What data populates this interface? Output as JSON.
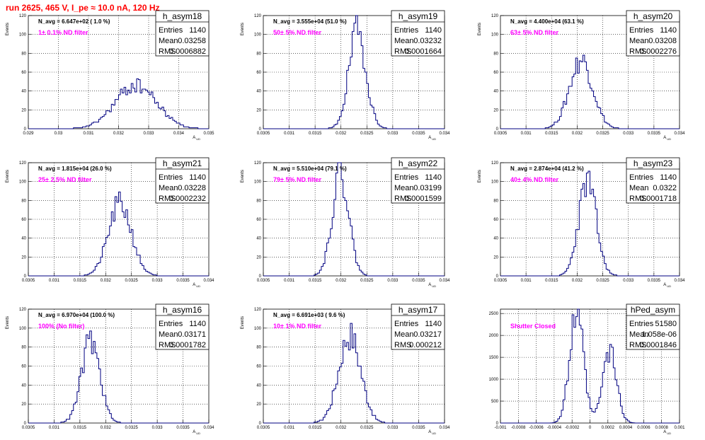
{
  "page": {
    "title": "run 2625,   465 V, I_pe ≈ 10.0 nA, 120 Hz"
  },
  "colors": {
    "title": "#ff0000",
    "filter_text": "#ff00ff",
    "histogram": "#000080",
    "grid": "#000000"
  },
  "chart_data": [
    {
      "type": "bar",
      "name": "h_asym18",
      "xlabel": "A_UD",
      "ylabel": "Events",
      "xlim": [
        0.029,
        0.035
      ],
      "ylim": [
        0,
        120
      ],
      "xticks": [
        "0.029",
        "0.03",
        "0.031",
        "0.032",
        "0.033",
        "0.034",
        "0.035"
      ],
      "yticks": [
        "0",
        "20",
        "40",
        "60",
        "80",
        "100",
        "120"
      ],
      "n_avg": "N_avg = 6.647e+02 ( 1.0 %)",
      "filter": "1± 0.1% ND filter",
      "stats": {
        "entries": "1140",
        "mean": "0.03258",
        "rms": "0.0006882"
      },
      "mu": 0.03258,
      "sigma": 0.0006882,
      "peak": 46,
      "seed": 18
    },
    {
      "type": "bar",
      "name": "h_asym19",
      "xlabel": "A_UD",
      "ylabel": "Events",
      "xlim": [
        0.0305,
        0.034
      ],
      "ylim": [
        0,
        120
      ],
      "xticks": [
        "0.0305",
        "0.031",
        "0.0315",
        "0.032",
        "0.0325",
        "0.033",
        "0.0335",
        "0.034"
      ],
      "yticks": [
        "0",
        "20",
        "40",
        "60",
        "80",
        "100",
        "120"
      ],
      "n_avg": "N_avg = 3.555e+04 (51.0 %)",
      "filter": "50± 5% ND filter",
      "stats": {
        "entries": "1140",
        "mean": "0.03232",
        "rms": "0.0001664"
      },
      "mu": 0.03232,
      "sigma": 0.0001664,
      "peak": 103,
      "seed": 19
    },
    {
      "type": "bar",
      "name": "h_asym20",
      "xlabel": "A_UD",
      "ylabel": "Events",
      "xlim": [
        0.0305,
        0.034
      ],
      "ylim": [
        0,
        120
      ],
      "xticks": [
        "0.0305",
        "0.031",
        "0.0315",
        "0.032",
        "0.0325",
        "0.033",
        "0.0335",
        "0.034"
      ],
      "yticks": [
        "0",
        "20",
        "40",
        "60",
        "80",
        "100",
        "120"
      ],
      "n_avg": "N_avg = 4.400e+04 (63.1 %)",
      "filter": "63± 5% ND filter",
      "stats": {
        "entries": "1140",
        "mean": "0.03208",
        "rms": "0.0002276"
      },
      "mu": 0.03208,
      "sigma": 0.0002276,
      "peak": 73,
      "seed": 20
    },
    {
      "type": "bar",
      "name": "h_asym21",
      "xlabel": "A_UD",
      "ylabel": "Events",
      "xlim": [
        0.0305,
        0.034
      ],
      "ylim": [
        0,
        120
      ],
      "xticks": [
        "0.0305",
        "0.031",
        "0.0315",
        "0.032",
        "0.0325",
        "0.033",
        "0.0335",
        "0.034"
      ],
      "yticks": [
        "0",
        "20",
        "40",
        "60",
        "80",
        "100",
        "120"
      ],
      "n_avg": "N_avg = 1.815e+04 (26.0 %)",
      "filter": "25± 2.5% ND filter",
      "stats": {
        "entries": "1140",
        "mean": "0.03228",
        "rms": "0.0002232"
      },
      "mu": 0.03228,
      "sigma": 0.0002232,
      "peak": 76,
      "seed": 21
    },
    {
      "type": "bar",
      "name": "h_asym22",
      "xlabel": "A_UD",
      "ylabel": "Events",
      "xlim": [
        0.0305,
        0.034
      ],
      "ylim": [
        0,
        120
      ],
      "xticks": [
        "0.0305",
        "0.031",
        "0.0315",
        "0.032",
        "0.0325",
        "0.033",
        "0.0335",
        "0.034"
      ],
      "yticks": [
        "0",
        "20",
        "40",
        "60",
        "80",
        "100",
        "120"
      ],
      "n_avg": "N_avg = 5.510e+04 (79.1 %)",
      "filter": "79± 5% ND filter",
      "stats": {
        "entries": "1140",
        "mean": "0.03199",
        "rms": "0.0001599"
      },
      "mu": 0.03199,
      "sigma": 0.0001599,
      "peak": 111,
      "seed": 22
    },
    {
      "type": "bar",
      "name": "h_asym23",
      "xlabel": "A_UD",
      "ylabel": "Events",
      "xlim": [
        0.0305,
        0.034
      ],
      "ylim": [
        0,
        120
      ],
      "xticks": [
        "0.0305",
        "0.031",
        "0.0315",
        "0.032",
        "0.0325",
        "0.033",
        "0.0335",
        "0.034"
      ],
      "yticks": [
        "0",
        "20",
        "40",
        "60",
        "80",
        "100",
        "120"
      ],
      "n_avg": "N_avg = 2.874e+04 (41.2 %)",
      "filter": "40± 4% ND filter",
      "stats": {
        "entries": "1140",
        "mean": "0.0322",
        "rms": "0.0001718"
      },
      "mu": 0.0322,
      "sigma": 0.0001718,
      "peak": 100,
      "seed": 23
    },
    {
      "type": "bar",
      "name": "h_asym16",
      "xlabel": "A_UD",
      "ylabel": "Events",
      "xlim": [
        0.0305,
        0.034
      ],
      "ylim": [
        0,
        120
      ],
      "xticks": [
        "0.0305",
        "0.031",
        "0.0315",
        "0.032",
        "0.0325",
        "0.033",
        "0.0335",
        "0.034"
      ],
      "yticks": [
        "0",
        "20",
        "40",
        "60",
        "80",
        "100",
        "120"
      ],
      "n_avg": "N_avg = 6.970e+04 (100.0 %)",
      "filter": "100% (No filter)",
      "stats": {
        "entries": "1140",
        "mean": "0.03171",
        "rms": "0.0001782"
      },
      "mu": 0.03171,
      "sigma": 0.0001782,
      "peak": 86,
      "seed": 16
    },
    {
      "type": "bar",
      "name": "h_asym17",
      "xlabel": "A_UD",
      "ylabel": "Events",
      "xlim": [
        0.0305,
        0.034
      ],
      "ylim": [
        0,
        120
      ],
      "xticks": [
        "0.0305",
        "0.031",
        "0.0315",
        "0.032",
        "0.0325",
        "0.033",
        "0.0335",
        "0.034"
      ],
      "yticks": [
        "0",
        "20",
        "40",
        "60",
        "80",
        "100",
        "120"
      ],
      "n_avg": "N_avg = 6.691e+03 ( 9.6 %)",
      "filter": "10± 1% ND filter",
      "stats": {
        "entries": "1140",
        "mean": "0.03217",
        "rms": "0.000212"
      },
      "mu": 0.03217,
      "sigma": 0.000212,
      "peak": 93,
      "seed": 17
    },
    {
      "type": "bar",
      "name": "hPed_asym",
      "xlabel": "A_UD",
      "ylabel": "",
      "xlim": [
        -0.001,
        0.001
      ],
      "ylim": [
        0,
        2600
      ],
      "xticks": [
        "-0.001",
        "-0.0008",
        "-0.0006",
        "-0.0004",
        "-0.0002",
        "0",
        "0.0002",
        "0.0004",
        "0.0006",
        "0.0008",
        "0.001"
      ],
      "yticks": [
        "0",
        "500",
        "1000",
        "1500",
        "2000",
        "2500"
      ],
      "n_avg": "",
      "filter": "Shutter Closed",
      "stats": {
        "entries": "51580",
        "mean": "1.058e-06",
        "rms": "0.0001846"
      },
      "bimodal": [
        {
          "mu": -0.00015,
          "sigma": 7.75e-05,
          "peak": 2480
        },
        {
          "mu": 0.00022,
          "sigma": 7.75e-05,
          "peak": 1620
        }
      ],
      "seed": 99
    }
  ],
  "stat_labels": {
    "entries": "Entries",
    "mean": "Mean",
    "rms": "RMS"
  }
}
